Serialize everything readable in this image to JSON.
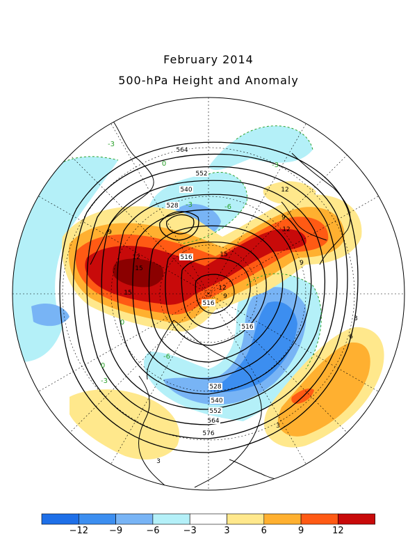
{
  "header": {
    "title": "February 2014",
    "subtitle": "500-hPa Height and Anomaly"
  },
  "colors": {
    "neg12": "#1e6fe8",
    "neg9": "#3c8ef0",
    "neg6": "#78b4f5",
    "neg3": "#b4f0f8",
    "neutral": "#ffffff",
    "pos3": "#ffe88c",
    "pos6": "#ffb030",
    "pos9": "#ff5a14",
    "pos12": "#c80a0a",
    "continent": "#000000",
    "height_contour": "#000000",
    "zero_contour": "#2aa02a"
  },
  "legend": {
    "bins": [
      "neg12",
      "neg9",
      "neg6",
      "neg3",
      "neutral",
      "pos3",
      "pos6",
      "pos9",
      "pos12"
    ],
    "ticks": [
      "−12",
      "−9",
      "−6",
      "−3",
      "3",
      "6",
      "9",
      "12"
    ]
  },
  "height_labels": [
    "564",
    "552",
    "540",
    "528",
    "516",
    "516",
    "516",
    "528",
    "540",
    "552",
    "564",
    "576"
  ],
  "anomaly_labels": [
    "9",
    "12",
    "15",
    "15",
    "12",
    "9",
    "9",
    "12",
    "15",
    "12",
    "9",
    "6",
    "3",
    "3",
    "3",
    "-3",
    "-3",
    "-3",
    "-6",
    "-6",
    "0",
    "0",
    "0",
    "-3"
  ]
}
